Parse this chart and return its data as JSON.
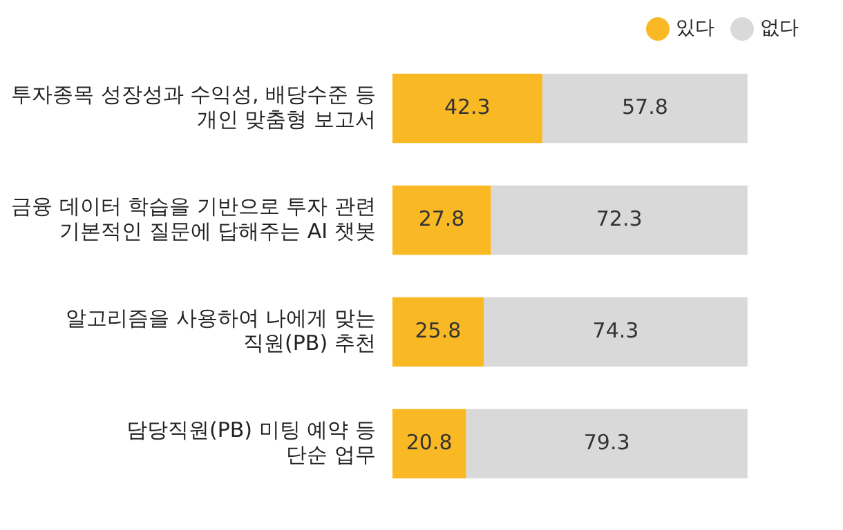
{
  "chart_data": {
    "type": "bar",
    "orientation": "horizontal",
    "stacked": true,
    "categories": [
      "투자종목 성장성과 수익성, 배당수준 등\n개인 맞춤형 보고서",
      "금융 데이터 학습을 기반으로 투자 관련\n기본적인 질문에 답해주는 AI 챗봇",
      "알고리즘을 사용하여 나에게 맞는\n직원(PB) 추천",
      "담당직원(PB) 미팅 예약 등\n단순 업무"
    ],
    "series": [
      {
        "name": "있다",
        "color": "#f9b925",
        "values": [
          42.3,
          27.8,
          25.8,
          20.8
        ]
      },
      {
        "name": "없다",
        "color": "#d9d9d9",
        "values": [
          57.8,
          72.3,
          74.3,
          79.3
        ]
      }
    ],
    "data_labels": true,
    "legend": "top right",
    "marker": "circle",
    "tick_labels": "y"
  }
}
